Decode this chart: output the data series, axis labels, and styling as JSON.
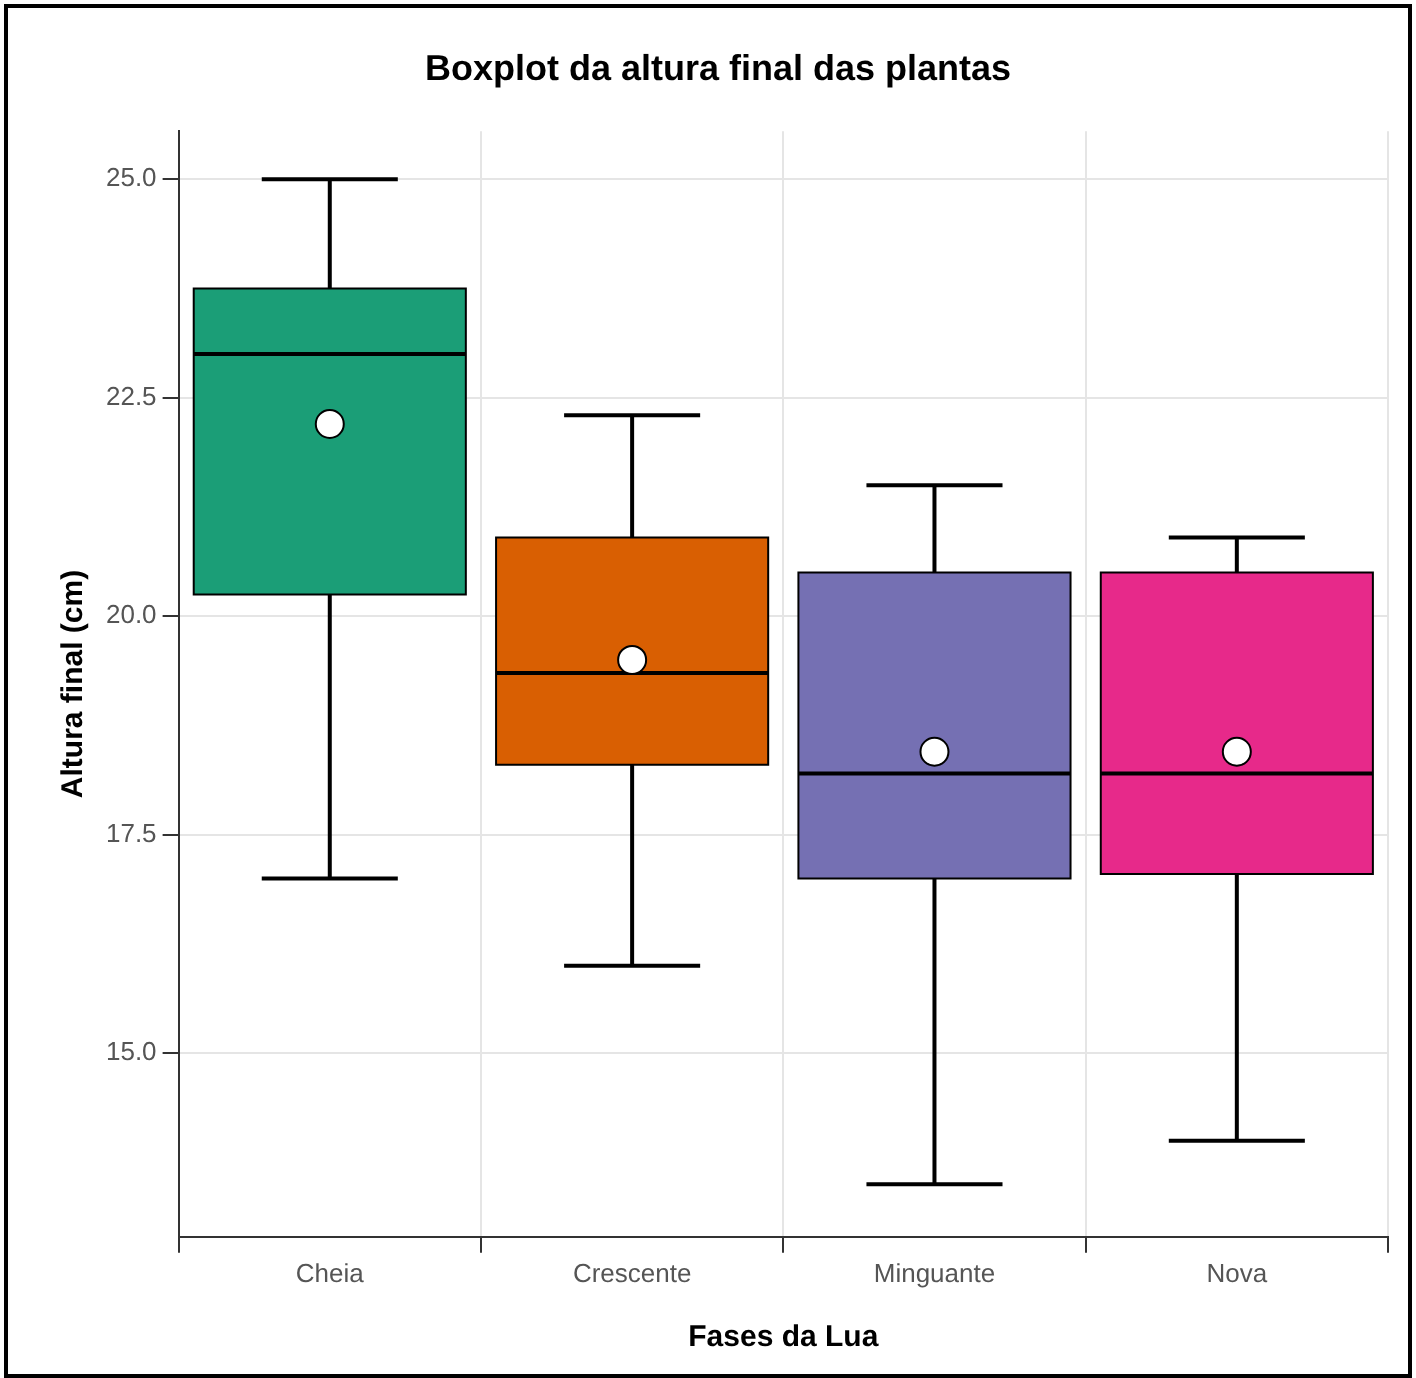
{
  "chart_data": {
    "type": "box",
    "title": "Boxplot da altura final das plantas",
    "xlabel": "Fases da Lua",
    "ylabel": "Altura final (cm)",
    "categories": [
      "Cheia",
      "Crescente",
      "Minguante",
      "Nova"
    ],
    "colors": [
      "#1b9e77",
      "#d95f02",
      "#7570b3",
      "#e7298a"
    ],
    "boxes": [
      {
        "low": 17,
        "q1": 20.25,
        "median": 23,
        "q3": 23.75,
        "high": 25,
        "mean": 22.2
      },
      {
        "low": 16,
        "q1": 18.3,
        "median": 19.35,
        "q3": 20.9,
        "high": 22.3,
        "mean": 19.5
      },
      {
        "low": 13.5,
        "q1": 17,
        "median": 18.2,
        "q3": 20.5,
        "high": 21.5,
        "mean": 18.45
      },
      {
        "low": 14,
        "q1": 17.05,
        "median": 18.2,
        "q3": 20.5,
        "high": 20.9,
        "mean": 18.45
      }
    ],
    "ylim": [
      12.9,
      25.55
    ],
    "yticks": [
      {
        "value": 15,
        "label": "15.0"
      },
      {
        "value": 17.5,
        "label": "17.5"
      },
      {
        "value": 20,
        "label": "20.0"
      },
      {
        "value": 22.5,
        "label": "22.5"
      },
      {
        "value": 25,
        "label": "25.0"
      }
    ],
    "grid": true
  }
}
